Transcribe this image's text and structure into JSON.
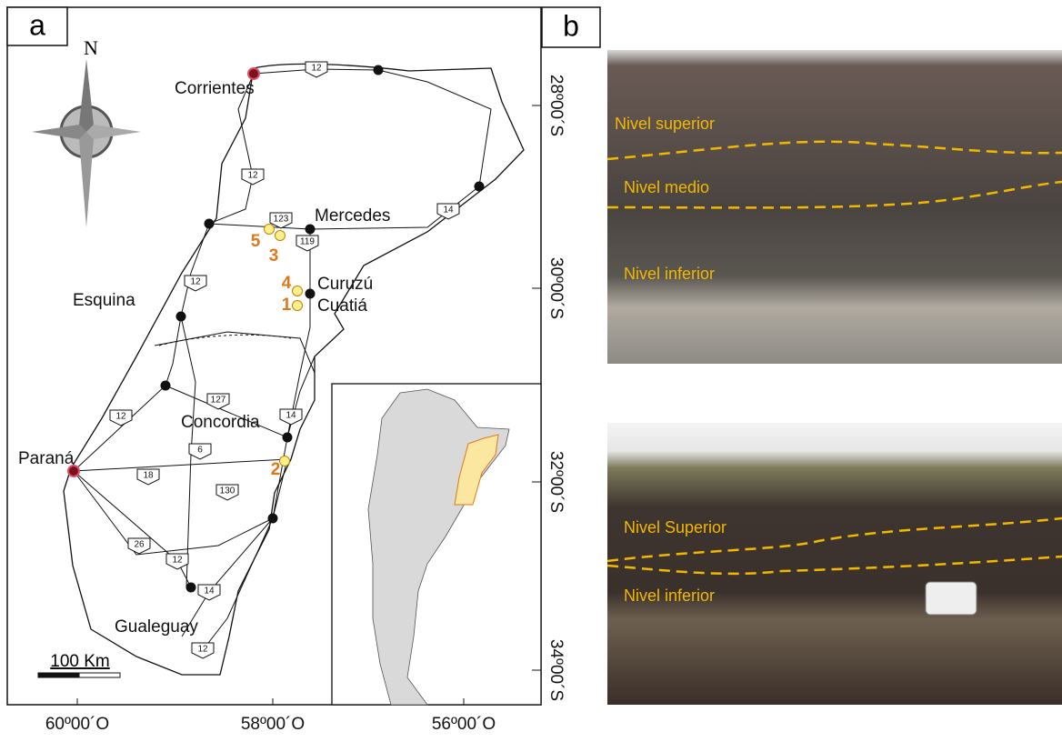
{
  "panels": {
    "a": "a",
    "b": "b"
  },
  "map": {
    "north": "N",
    "cities": [
      "Corrientes",
      "Mercedes",
      "Curuzú",
      "Cuatiá",
      "Esquina",
      "Concordia",
      "Paraná",
      "Gualeguay"
    ],
    "routes": [
      "12",
      "12",
      "123",
      "14",
      "119",
      "12",
      "127",
      "14",
      "12",
      "6",
      "18",
      "130",
      "26",
      "12",
      "14",
      "12"
    ],
    "sites": [
      "5",
      "3",
      "4",
      "1",
      "2"
    ],
    "scale": "100 Km",
    "longitudes": [
      "60º00´O",
      "58º00´O",
      "56º00´O"
    ],
    "latitudes": [
      "28º00´S",
      "30º00´S",
      "32º00´S",
      "34º00´S"
    ]
  },
  "photos": [
    {
      "labels": [
        "Nivel superior",
        "Nivel medio",
        "Nivel inferior"
      ]
    },
    {
      "labels": [
        "Nivel Superior",
        "Nivel inferior"
      ]
    }
  ]
}
